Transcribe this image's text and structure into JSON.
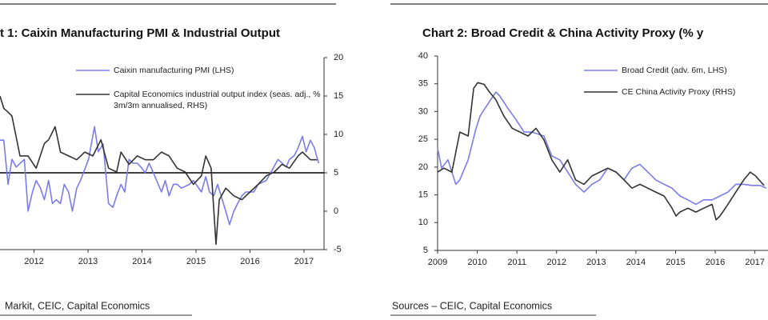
{
  "chart_data": [
    {
      "type": "line",
      "title": "t 1: Caixin Manufacturing PMI & Industrial Output",
      "source": "Markit, CEIC, Capital Economics",
      "xlim": [
        2011.37,
        2017.37
      ],
      "xticks": [
        2012,
        2013,
        2014,
        2015,
        2016,
        2017
      ],
      "ylim": [
        46,
        56
      ],
      "y2lim": [
        -5,
        20
      ],
      "y2ticks": [
        -5,
        0,
        5,
        10,
        15,
        20
      ],
      "reference_line": 50,
      "series": [
        {
          "name": "Caixin manufacturing PMI (LHS)",
          "color": "#7b7bf0",
          "x": [
            2011.37,
            2011.44,
            2011.52,
            2011.59,
            2011.67,
            2011.82,
            2011.89,
            2011.97,
            2012.04,
            2012.12,
            2012.19,
            2012.27,
            2012.34,
            2012.41,
            2012.49,
            2012.56,
            2012.64,
            2012.71,
            2012.79,
            2012.86,
            2013.01,
            2013.12,
            2013.19,
            2013.28,
            2013.38,
            2013.46,
            2013.53,
            2013.61,
            2013.68,
            2013.76,
            2013.83,
            2013.91,
            2013.98,
            2014.06,
            2014.13,
            2014.21,
            2014.36,
            2014.43,
            2014.5,
            2014.58,
            2014.65,
            2014.73,
            2014.88,
            2014.95,
            2015.1,
            2015.18,
            2015.25,
            2015.33,
            2015.4,
            2015.55,
            2015.62,
            2015.7,
            2015.77,
            2015.85,
            2015.92,
            2016.07,
            2016.15,
            2016.3,
            2016.52,
            2016.67,
            2016.73,
            2016.82,
            2016.89,
            2016.97,
            2017.04,
            2017.12,
            2017.19,
            2017.27
          ],
          "values": [
            51.7,
            51.7,
            49.4,
            50.7,
            50.3,
            50.7,
            48.0,
            49.0,
            49.6,
            49.2,
            48.6,
            49.6,
            48.4,
            48.6,
            48.4,
            49.4,
            49.0,
            48.0,
            49.2,
            49.6,
            50.7,
            52.4,
            51.1,
            51.5,
            48.4,
            48.2,
            48.8,
            49.4,
            49.0,
            50.7,
            50.5,
            50.5,
            50.3,
            50.0,
            50.5,
            50.0,
            49.0,
            49.6,
            48.8,
            49.4,
            49.4,
            49.2,
            49.4,
            49.6,
            49.0,
            49.8,
            49.0,
            48.8,
            49.4,
            48.0,
            47.3,
            48.0,
            48.4,
            48.8,
            49.0,
            49.0,
            49.4,
            49.6,
            50.7,
            50.3,
            50.7,
            50.9,
            51.3,
            51.9,
            51.1,
            51.7,
            51.3,
            50.5
          ]
        },
        {
          "name": "Capital Economics industrial output index (seas. adj., % 3m/3m annualised, RHS)",
          "color": "#333333",
          "axis": "y2",
          "x": [
            2011.37,
            2011.44,
            2011.52,
            2011.59,
            2011.74,
            2011.89,
            2012.04,
            2012.19,
            2012.27,
            2012.39,
            2012.49,
            2012.64,
            2012.79,
            2012.94,
            2013.09,
            2013.24,
            2013.38,
            2013.53,
            2013.61,
            2013.76,
            2013.91,
            2014.06,
            2014.21,
            2014.36,
            2014.5,
            2014.65,
            2014.8,
            2014.95,
            2015.1,
            2015.18,
            2015.28,
            2015.37,
            2015.43,
            2015.55,
            2015.7,
            2015.85,
            2016.0,
            2016.15,
            2016.3,
            2016.45,
            2016.59,
            2016.73,
            2016.89,
            2016.97,
            2017.12,
            2017.24
          ],
          "values": [
            15.0,
            13.4,
            12.9,
            12.4,
            7.2,
            7.2,
            5.6,
            8.8,
            9.3,
            11.0,
            7.7,
            7.2,
            6.7,
            7.7,
            7.2,
            9.3,
            5.6,
            5.1,
            7.7,
            6.1,
            7.2,
            6.7,
            6.7,
            7.7,
            7.2,
            5.6,
            5.1,
            3.5,
            4.6,
            7.2,
            5.6,
            -4.3,
            1.5,
            3.0,
            2.0,
            1.5,
            2.5,
            3.5,
            4.6,
            5.1,
            6.1,
            5.6,
            7.2,
            7.7,
            6.7,
            6.7
          ]
        }
      ]
    },
    {
      "type": "line",
      "title": "Chart 2: Broad Credit & China Activity Proxy (% y",
      "source": "Sources – CEIC, Capital Economics",
      "xlim": [
        2009,
        2017.33
      ],
      "xticks": [
        2009,
        2010,
        2011,
        2012,
        2013,
        2014,
        2015,
        2016,
        2017
      ],
      "ylim": [
        5,
        40
      ],
      "yticks": [
        5,
        10,
        15,
        20,
        25,
        30,
        35,
        40
      ],
      "y2lim": [
        5,
        40
      ],
      "series": [
        {
          "name": "Broad Credit (adv. 6m, LHS)",
          "color": "#7b7bf0",
          "x": [
            2009.0,
            2009.1,
            2009.26,
            2009.46,
            2009.56,
            2009.77,
            2009.97,
            2010.07,
            2010.27,
            2010.47,
            2010.57,
            2010.77,
            2010.98,
            2011.18,
            2011.38,
            2011.68,
            2011.88,
            2012.08,
            2012.28,
            2012.48,
            2012.69,
            2012.89,
            2013.09,
            2013.29,
            2013.5,
            2013.7,
            2013.9,
            2014.1,
            2014.3,
            2014.5,
            2014.71,
            2014.91,
            2015.11,
            2015.31,
            2015.51,
            2015.71,
            2015.92,
            2016.12,
            2016.32,
            2016.52,
            2016.72,
            2016.92,
            2017.13,
            2017.29
          ],
          "values": [
            23.4,
            19.8,
            21.3,
            16.9,
            17.7,
            21.3,
            27.0,
            29.2,
            31.4,
            33.5,
            32.8,
            30.6,
            28.5,
            26.3,
            26.3,
            25.6,
            22.0,
            21.3,
            19.1,
            16.9,
            15.5,
            16.9,
            17.7,
            19.8,
            19.1,
            17.7,
            19.8,
            20.5,
            19.1,
            17.7,
            16.9,
            16.2,
            14.8,
            14.1,
            13.3,
            14.1,
            14.1,
            14.8,
            15.5,
            16.9,
            16.9,
            16.7,
            16.7,
            16.2
          ]
        },
        {
          "name": "CE China Activity Proxy (RHS)",
          "color": "#333333",
          "axis": "y2",
          "x": [
            2009.0,
            2009.16,
            2009.36,
            2009.56,
            2009.77,
            2009.91,
            2010.01,
            2010.17,
            2010.31,
            2010.47,
            2010.67,
            2010.88,
            2011.08,
            2011.28,
            2011.48,
            2011.68,
            2011.88,
            2012.08,
            2012.28,
            2012.48,
            2012.69,
            2012.89,
            2013.09,
            2013.29,
            2013.5,
            2013.7,
            2013.9,
            2014.1,
            2014.3,
            2014.5,
            2014.71,
            2014.91,
            2015.01,
            2015.11,
            2015.31,
            2015.51,
            2015.71,
            2015.92,
            2016.02,
            2016.12,
            2016.32,
            2016.52,
            2016.72,
            2016.88,
            2017.02,
            2017.23
          ],
          "values": [
            19.1,
            19.8,
            19.1,
            26.3,
            25.6,
            34.2,
            35.2,
            34.9,
            33.5,
            32.1,
            29.2,
            27.0,
            26.3,
            25.6,
            27.0,
            24.9,
            21.3,
            19.1,
            21.3,
            17.7,
            16.9,
            18.4,
            19.1,
            19.8,
            19.1,
            17.7,
            16.2,
            16.9,
            16.2,
            15.5,
            14.8,
            12.6,
            11.2,
            11.9,
            12.6,
            11.9,
            12.6,
            13.3,
            10.5,
            11.2,
            13.3,
            15.5,
            17.7,
            19.1,
            18.4,
            16.7
          ]
        }
      ]
    }
  ]
}
